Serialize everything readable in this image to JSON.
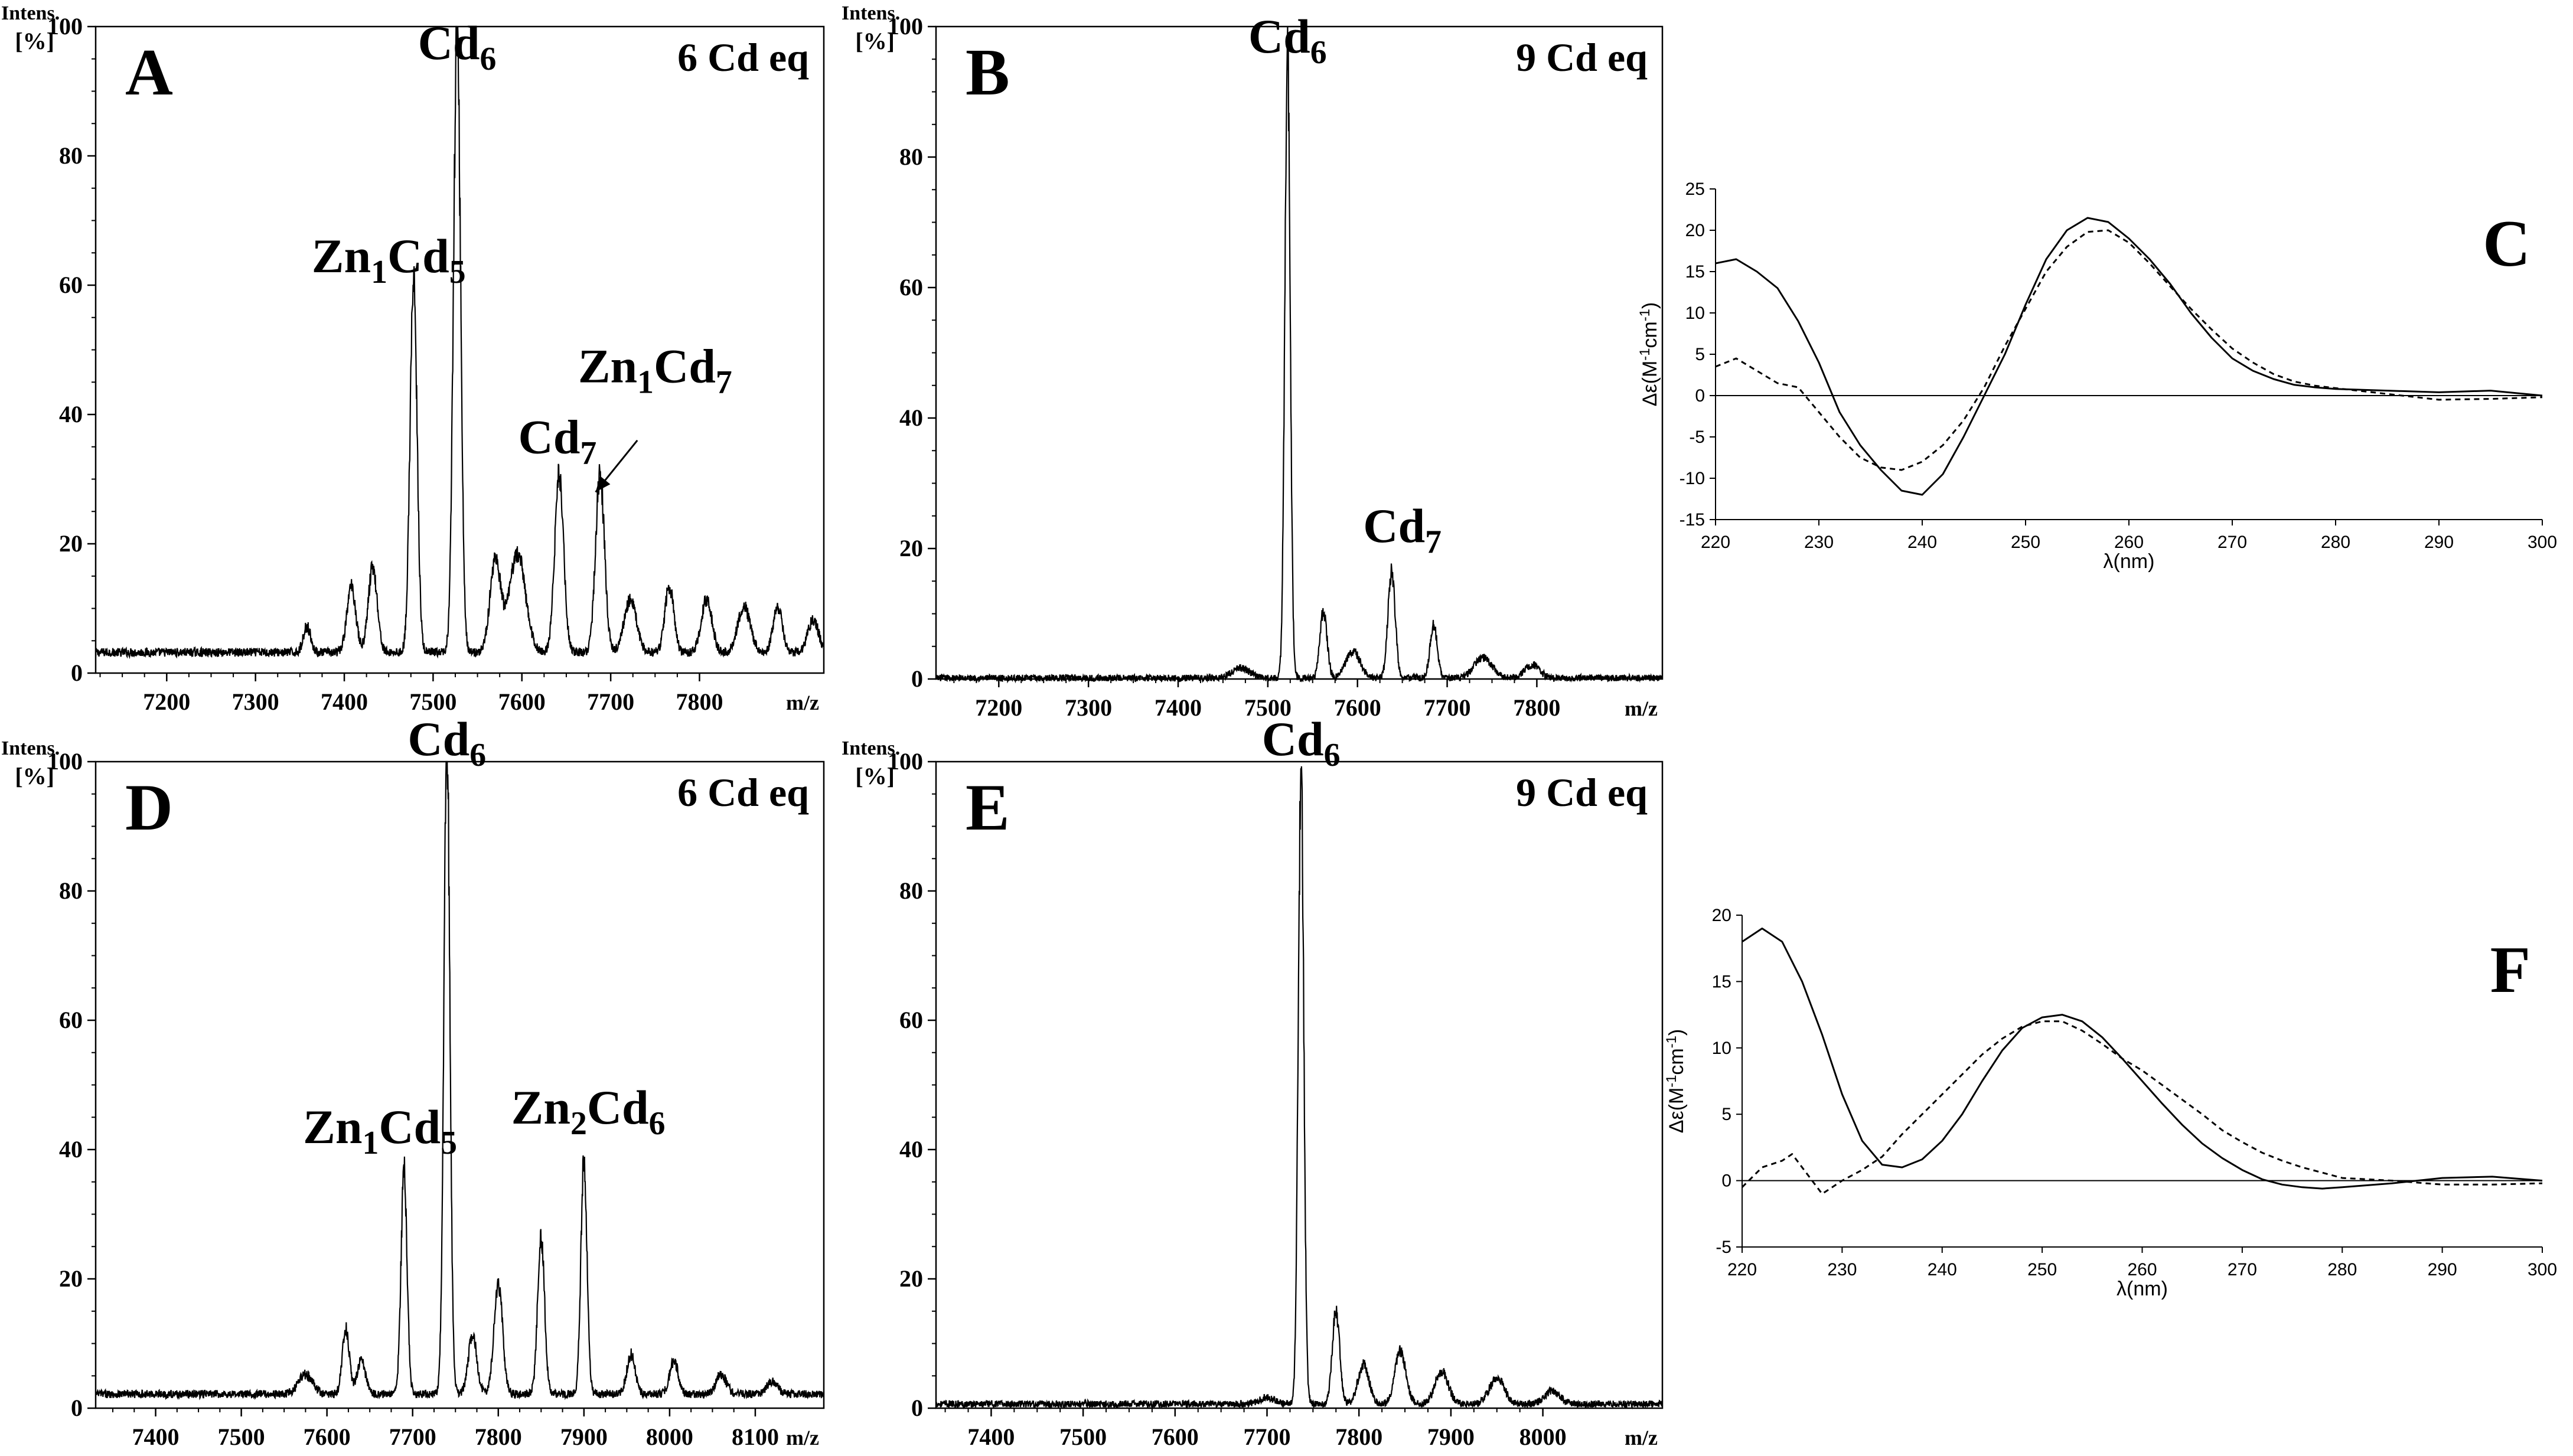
{
  "colors": {
    "ink": "#000000",
    "background": "#ffffff"
  },
  "chart_data": [
    {
      "panel": "A",
      "type": "line",
      "kind": "ms",
      "condition": "6 Cd eq",
      "ylabel_top": "Intens.",
      "ylabel_bottom": "[%]",
      "xlabel": "m/z",
      "xlim": [
        7120,
        7940
      ],
      "ylim": [
        0,
        100
      ],
      "xticks": [
        7200,
        7300,
        7400,
        7500,
        7600,
        7700,
        7800
      ],
      "yticks": [
        0,
        20,
        40,
        60,
        80,
        100
      ],
      "baseline": 3,
      "peaks": [
        {
          "x": 7358,
          "y": 4,
          "w": 4
        },
        {
          "x": 7408,
          "y": 10,
          "w": 5
        },
        {
          "x": 7432,
          "y": 13,
          "w": 5
        },
        {
          "x": 7478,
          "y": 56,
          "w": 4
        },
        {
          "x": 7527,
          "y": 94,
          "w": 4
        },
        {
          "x": 7570,
          "y": 14,
          "w": 6
        },
        {
          "x": 7595,
          "y": 15,
          "w": 9
        },
        {
          "x": 7642,
          "y": 27,
          "w": 5
        },
        {
          "x": 7688,
          "y": 27,
          "w": 5
        },
        {
          "x": 7722,
          "y": 8,
          "w": 7
        },
        {
          "x": 7766,
          "y": 10,
          "w": 5
        },
        {
          "x": 7808,
          "y": 8,
          "w": 6
        },
        {
          "x": 7850,
          "y": 7,
          "w": 7
        },
        {
          "x": 7888,
          "y": 7,
          "w": 5
        },
        {
          "x": 7928,
          "y": 5,
          "w": 6
        }
      ],
      "labels": [
        {
          "pre": "Cd",
          "sub": "6",
          "mid": "",
          "sub2": "",
          "x": 7527,
          "y": 95
        },
        {
          "pre": "Zn",
          "sub": "1",
          "mid": "Cd",
          "sub2": "5",
          "x": 7450,
          "y": 62
        },
        {
          "pre": "Cd",
          "sub": "7",
          "mid": "",
          "sub2": "",
          "x": 7640,
          "y": 34
        },
        {
          "pre": "Zn",
          "sub": "1",
          "mid": "Cd",
          "sub2": "7",
          "x": 7750,
          "y": 45
        }
      ],
      "annotation_arrow": {
        "from": [
          7730,
          36
        ],
        "to": [
          7683,
          28
        ]
      }
    },
    {
      "panel": "B",
      "type": "line",
      "kind": "ms",
      "condition": "9 Cd eq",
      "ylabel_top": "Intens.",
      "ylabel_bottom": "[%]",
      "xlabel": "m/z",
      "xlim": [
        7130,
        7940
      ],
      "ylim": [
        0,
        100
      ],
      "xticks": [
        7200,
        7300,
        7400,
        7500,
        7600,
        7700,
        7800
      ],
      "yticks": [
        0,
        20,
        40,
        60,
        80,
        100
      ],
      "baseline": 0,
      "peaks": [
        {
          "x": 7470,
          "y": 1.5,
          "w": 10
        },
        {
          "x": 7522,
          "y": 95,
          "w": 3
        },
        {
          "x": 7562,
          "y": 10,
          "w": 4
        },
        {
          "x": 7595,
          "y": 4,
          "w": 8
        },
        {
          "x": 7638,
          "y": 16,
          "w": 4
        },
        {
          "x": 7685,
          "y": 8,
          "w": 4
        },
        {
          "x": 7740,
          "y": 3,
          "w": 10
        },
        {
          "x": 7795,
          "y": 2,
          "w": 8
        }
      ],
      "labels": [
        {
          "pre": "Cd",
          "sub": "6",
          "mid": "",
          "sub2": "",
          "x": 7522,
          "y": 96
        },
        {
          "pre": "Cd",
          "sub": "7",
          "mid": "",
          "sub2": "",
          "x": 7650,
          "y": 21
        }
      ]
    },
    {
      "panel": "C",
      "type": "line",
      "kind": "cd",
      "ylabel": "Δε(M-1cm-1)",
      "xlabel": "λ(nm)",
      "xlim": [
        220,
        300
      ],
      "ylim": [
        -15,
        25
      ],
      "xticks": [
        220,
        230,
        240,
        250,
        260,
        270,
        280,
        290,
        300
      ],
      "yticks": [
        -15,
        -10,
        -5,
        0,
        5,
        10,
        15,
        20,
        25
      ],
      "series": [
        {
          "name": "solid",
          "style": "solid",
          "x": [
            220,
            222,
            224,
            226,
            228,
            230,
            232,
            234,
            236,
            238,
            240,
            242,
            244,
            246,
            248,
            250,
            252,
            254,
            256,
            258,
            260,
            262,
            264,
            266,
            268,
            270,
            272,
            274,
            276,
            278,
            280,
            285,
            290,
            295,
            300
          ],
          "y": [
            16,
            16.5,
            15,
            13,
            9,
            4,
            -2,
            -6,
            -9,
            -11.5,
            -12,
            -9.5,
            -5,
            0,
            5,
            11,
            16.5,
            20,
            21.5,
            21,
            19,
            16.5,
            13.5,
            10,
            7,
            4.5,
            3,
            2,
            1.3,
            1,
            0.8,
            0.6,
            0.4,
            0.6,
            0
          ]
        },
        {
          "name": "dashed",
          "style": "dashed",
          "x": [
            220,
            222,
            224,
            226,
            228,
            230,
            232,
            234,
            236,
            238,
            240,
            242,
            244,
            246,
            248,
            250,
            252,
            254,
            256,
            258,
            260,
            262,
            264,
            266,
            268,
            270,
            272,
            274,
            276,
            278,
            280,
            285,
            290,
            295,
            300
          ],
          "y": [
            3.5,
            4.5,
            3,
            1.5,
            1,
            -2,
            -5,
            -7.5,
            -8.7,
            -9,
            -8,
            -6,
            -3,
            1,
            6,
            10.5,
            15,
            18,
            19.8,
            20,
            18.5,
            16,
            13.2,
            10.5,
            8,
            5.7,
            4,
            2.6,
            1.7,
            1.2,
            0.9,
            0.2,
            -0.5,
            -0.4,
            -0.2
          ]
        }
      ]
    },
    {
      "panel": "D",
      "type": "line",
      "kind": "ms",
      "condition": "6 Cd eq",
      "ylabel_top": "Intens.",
      "ylabel_bottom": "[%]",
      "xlabel": "m/z",
      "xlim": [
        7330,
        8180
      ],
      "ylim": [
        0,
        100
      ],
      "xticks": [
        7400,
        7500,
        7600,
        7700,
        7800,
        7900,
        8000,
        8100
      ],
      "yticks": [
        0,
        20,
        40,
        60,
        80,
        100
      ],
      "baseline": 2,
      "peaks": [
        {
          "x": 7575,
          "y": 3,
          "w": 8
        },
        {
          "x": 7622,
          "y": 10,
          "w": 4
        },
        {
          "x": 7640,
          "y": 5,
          "w": 5
        },
        {
          "x": 7690,
          "y": 34,
          "w": 3.5
        },
        {
          "x": 7740,
          "y": 99,
          "w": 3.5
        },
        {
          "x": 7770,
          "y": 9,
          "w": 5
        },
        {
          "x": 7800,
          "y": 17,
          "w": 5
        },
        {
          "x": 7850,
          "y": 24,
          "w": 4
        },
        {
          "x": 7900,
          "y": 36,
          "w": 3.5
        },
        {
          "x": 7955,
          "y": 6,
          "w": 5
        },
        {
          "x": 8005,
          "y": 5,
          "w": 5
        },
        {
          "x": 8060,
          "y": 3,
          "w": 6
        },
        {
          "x": 8120,
          "y": 2,
          "w": 6
        }
      ],
      "labels": [
        {
          "pre": "Cd",
          "sub": "6",
          "mid": "",
          "sub2": "",
          "x": 7740,
          "y": 101
        },
        {
          "pre": "Zn",
          "sub": "1",
          "mid": "Cd",
          "sub2": "5",
          "x": 7662,
          "y": 41
        },
        {
          "pre": "Zn",
          "sub": "2",
          "mid": "Cd",
          "sub2": "6",
          "x": 7905,
          "y": 44
        }
      ]
    },
    {
      "panel": "E",
      "type": "line",
      "kind": "ms",
      "condition": "9 Cd eq",
      "ylabel_top": "Intens.",
      "ylabel_bottom": "[%]",
      "xlabel": "m/z",
      "xlim": [
        7340,
        8130
      ],
      "ylim": [
        0,
        100
      ],
      "xticks": [
        7400,
        7500,
        7600,
        7700,
        7800,
        7900,
        8000
      ],
      "yticks": [
        0,
        20,
        40,
        60,
        80,
        100
      ],
      "baseline": 0.5,
      "peaks": [
        {
          "x": 7700,
          "y": 1,
          "w": 8
        },
        {
          "x": 7737,
          "y": 96,
          "w": 3
        },
        {
          "x": 7775,
          "y": 14,
          "w": 4
        },
        {
          "x": 7805,
          "y": 6,
          "w": 6
        },
        {
          "x": 7845,
          "y": 8,
          "w": 6
        },
        {
          "x": 7890,
          "y": 5,
          "w": 7
        },
        {
          "x": 7950,
          "y": 4,
          "w": 8
        },
        {
          "x": 8010,
          "y": 2,
          "w": 8
        }
      ],
      "labels": [
        {
          "pre": "Cd",
          "sub": "6",
          "mid": "",
          "sub2": "",
          "x": 7737,
          "y": 101
        }
      ]
    },
    {
      "panel": "F",
      "type": "line",
      "kind": "cd",
      "ylabel": "Δε(M-1cm-1)",
      "xlabel": "λ(nm)",
      "xlim": [
        220,
        300
      ],
      "ylim": [
        -5,
        20
      ],
      "xticks": [
        220,
        230,
        240,
        250,
        260,
        270,
        280,
        290,
        300
      ],
      "yticks": [
        -5,
        0,
        5,
        10,
        15,
        20
      ],
      "series": [
        {
          "name": "solid",
          "style": "solid",
          "x": [
            220,
            222,
            224,
            226,
            228,
            230,
            232,
            234,
            236,
            238,
            240,
            242,
            244,
            246,
            248,
            250,
            252,
            254,
            256,
            258,
            260,
            262,
            264,
            266,
            268,
            270,
            272,
            274,
            276,
            278,
            280,
            285,
            290,
            295,
            300
          ],
          "y": [
            18,
            19,
            18,
            15,
            11,
            6.5,
            3,
            1.2,
            1,
            1.6,
            3,
            5,
            7.5,
            9.8,
            11.5,
            12.3,
            12.5,
            12,
            10.8,
            9.2,
            7.5,
            5.8,
            4.2,
            2.8,
            1.7,
            0.8,
            0.1,
            -0.3,
            -0.5,
            -0.6,
            -0.5,
            -0.2,
            0.2,
            0.3,
            0
          ]
        },
        {
          "name": "dashed",
          "style": "dashed",
          "x": [
            220,
            222,
            224,
            225,
            226,
            228,
            230,
            232,
            234,
            236,
            238,
            240,
            242,
            244,
            246,
            248,
            250,
            252,
            254,
            256,
            258,
            260,
            262,
            264,
            266,
            268,
            270,
            272,
            274,
            276,
            278,
            280,
            285,
            290,
            295,
            300
          ],
          "y": [
            -0.5,
            1,
            1.5,
            2,
            1,
            -1,
            0,
            0.8,
            1.8,
            3.5,
            5,
            6.5,
            8,
            9.5,
            10.7,
            11.6,
            12,
            12,
            11.3,
            10.3,
            9.2,
            8.3,
            7.2,
            6.1,
            5,
            3.8,
            2.9,
            2.1,
            1.5,
            1,
            0.6,
            0.2,
            0,
            -0.3,
            -0.3,
            -0.2
          ]
        }
      ]
    }
  ]
}
